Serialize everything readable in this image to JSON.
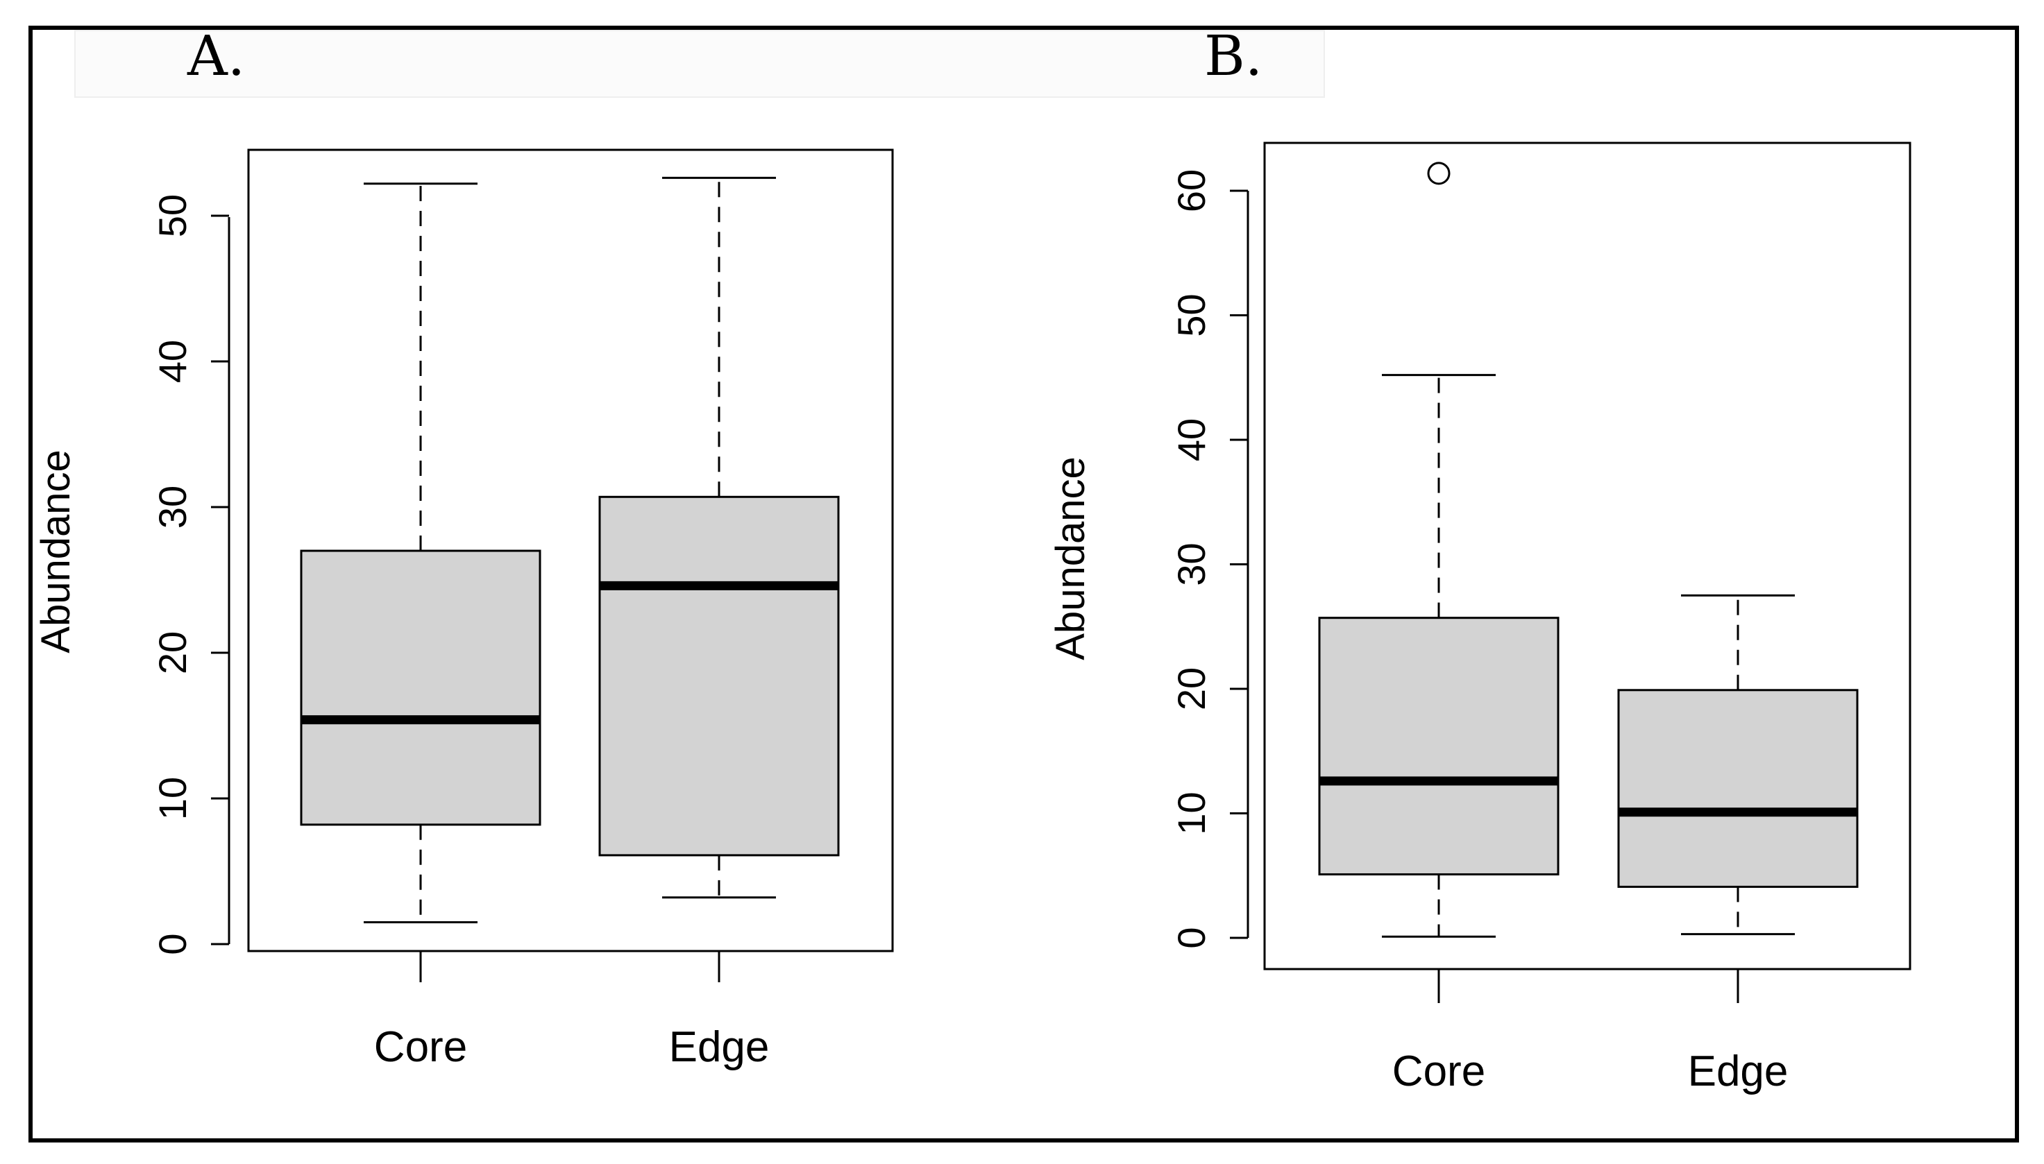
{
  "colors": {
    "box_fill": "#d3d3d3",
    "stroke": "#000000",
    "background": "#ffffff"
  },
  "chart_data": [
    {
      "type": "boxplot",
      "panel": "A.",
      "ylabel": "Abundance",
      "ylim": [
        0,
        55
      ],
      "yticks": [
        0,
        10,
        20,
        30,
        40,
        50
      ],
      "categories": [
        "Core",
        "Edge"
      ],
      "boxes": [
        {
          "label": "Core",
          "whisker_low": 1.5,
          "q1": 8.2,
          "median": 15.4,
          "q3": 27,
          "whisker_high": 52.2,
          "outliers": []
        },
        {
          "label": "Edge",
          "whisker_low": 3.2,
          "q1": 6.1,
          "median": 24.6,
          "q3": 30.7,
          "whisker_high": 52.6,
          "outliers": []
        }
      ]
    },
    {
      "type": "boxplot",
      "panel": "B.",
      "ylabel": "Abundance",
      "ylim": [
        0,
        65
      ],
      "yticks": [
        0,
        10,
        20,
        30,
        40,
        50,
        60
      ],
      "categories": [
        "Core",
        "Edge"
      ],
      "boxes": [
        {
          "label": "Core",
          "whisker_low": 0.1,
          "q1": 5.1,
          "median": 12.6,
          "q3": 25.7,
          "whisker_high": 45.2,
          "outliers": [
            61.4
          ]
        },
        {
          "label": "Edge",
          "whisker_low": 0.3,
          "q1": 4.1,
          "median": 10.1,
          "q3": 19.9,
          "whisker_high": 27.5,
          "outliers": []
        }
      ]
    }
  ]
}
